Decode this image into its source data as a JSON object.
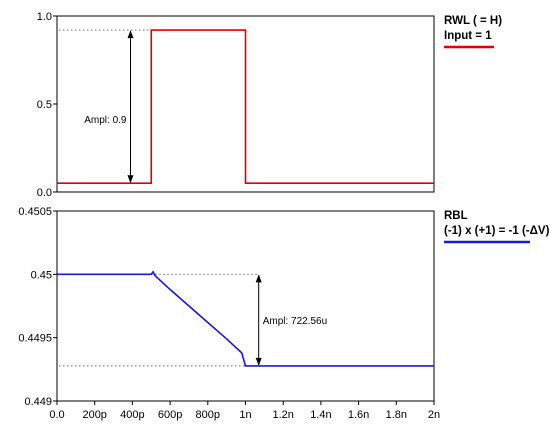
{
  "chart_data": [
    {
      "type": "line",
      "title": "",
      "xlabel": "",
      "ylabel": "",
      "xlim": [
        0,
        2
      ],
      "ylim": [
        0,
        1.0
      ],
      "x_unit": "ns",
      "y_ticks": [
        "0.0",
        "0.5",
        "1.0"
      ],
      "legend": {
        "position": "right",
        "lines": [
          "RWL ( = H)",
          "Input = 1"
        ]
      },
      "series": [
        {
          "name": "RWL ( = H)",
          "color": "#e00000",
          "x": [
            0,
            0.5,
            0.5,
            1.0,
            1.0,
            2.0
          ],
          "y": [
            0.05,
            0.05,
            0.92,
            0.92,
            0.05,
            0.05
          ]
        }
      ],
      "annotation": {
        "label": "Ampl: 0.9",
        "x": 0.39,
        "y_low": 0.05,
        "y_high": 0.92,
        "ref_y": 0.92
      }
    },
    {
      "type": "line",
      "title": "",
      "xlabel": "",
      "ylabel": "",
      "xlim": [
        0,
        2
      ],
      "ylim": [
        0.449,
        0.4505
      ],
      "x_unit": "ns",
      "y_ticks": [
        "0.449",
        "0.4495",
        "0.45",
        "0.4505"
      ],
      "x_ticks": [
        "0.0",
        "200p",
        "400p",
        "600p",
        "800p",
        "1n",
        "1.2n",
        "1.4n",
        "1.6n",
        "1.8n",
        "2n"
      ],
      "legend": {
        "position": "right",
        "lines": [
          "RBL",
          "(-1) x (+1) = -1 (-ΔV)"
        ]
      },
      "series": [
        {
          "name": "RBL",
          "color": "#1a1ad0",
          "x": [
            0,
            0.5,
            0.51,
            0.52,
            0.6,
            0.7,
            0.8,
            0.9,
            0.98,
            1.0,
            1.02,
            2.0
          ],
          "y": [
            0.45,
            0.45,
            0.45002,
            0.44999,
            0.44988,
            0.44975,
            0.44962,
            0.44949,
            0.44938,
            0.449277,
            0.449277,
            0.449277
          ]
        }
      ],
      "annotation": {
        "label": "Ampl: 722.56u",
        "x": 1.07,
        "y_low": 0.449277,
        "y_high": 0.45,
        "ref_y_top": 0.45,
        "ref_y_bottom": 0.449277
      }
    }
  ]
}
